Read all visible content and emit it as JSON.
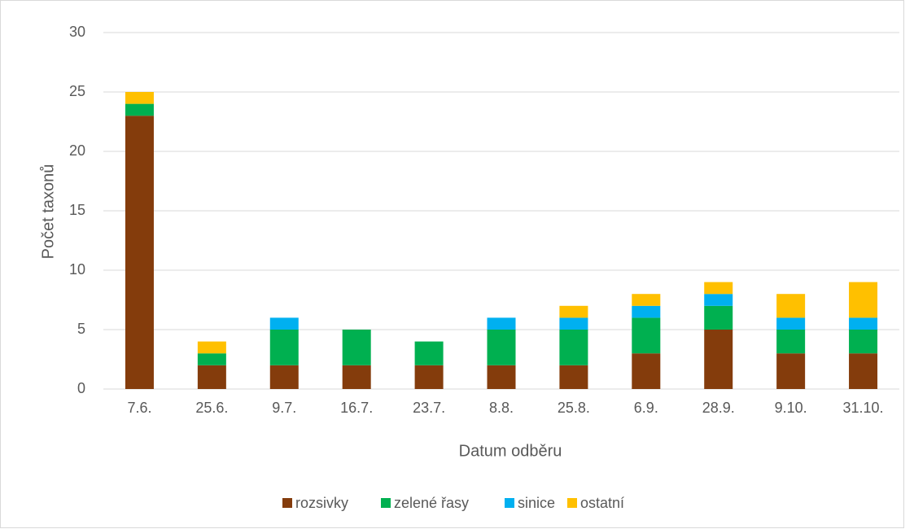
{
  "chart_data": {
    "type": "stacked_bar",
    "x_label": "Datum odběru",
    "y_label": "Počet taxonů",
    "categories": [
      "7.6.",
      "25.6.",
      "9.7.",
      "16.7.",
      "23.7.",
      "8.8.",
      "25.8.",
      "6.9.",
      "28.9.",
      "9.10.",
      "31.10."
    ],
    "series": [
      {
        "name": "rozsivky",
        "color": "#843c0c",
        "values": [
          23,
          2,
          2,
          2,
          2,
          2,
          2,
          3,
          5,
          3,
          3
        ]
      },
      {
        "name": "zelené řasy",
        "color": "#00b050",
        "values": [
          1,
          1,
          3,
          3,
          2,
          3,
          3,
          3,
          2,
          2,
          2
        ]
      },
      {
        "name": "sinice",
        "color": "#00b0f0",
        "values": [
          0,
          0,
          1,
          0,
          0,
          1,
          1,
          1,
          1,
          1,
          1
        ]
      },
      {
        "name": "ostatní",
        "color": "#ffc000",
        "values": [
          1,
          1,
          0,
          0,
          0,
          0,
          1,
          1,
          1,
          2,
          3
        ]
      }
    ],
    "ylim": [
      0,
      30
    ],
    "yticks": [
      0,
      5,
      10,
      15,
      20,
      25,
      30
    ],
    "grid": true,
    "legend": "bottom"
  }
}
